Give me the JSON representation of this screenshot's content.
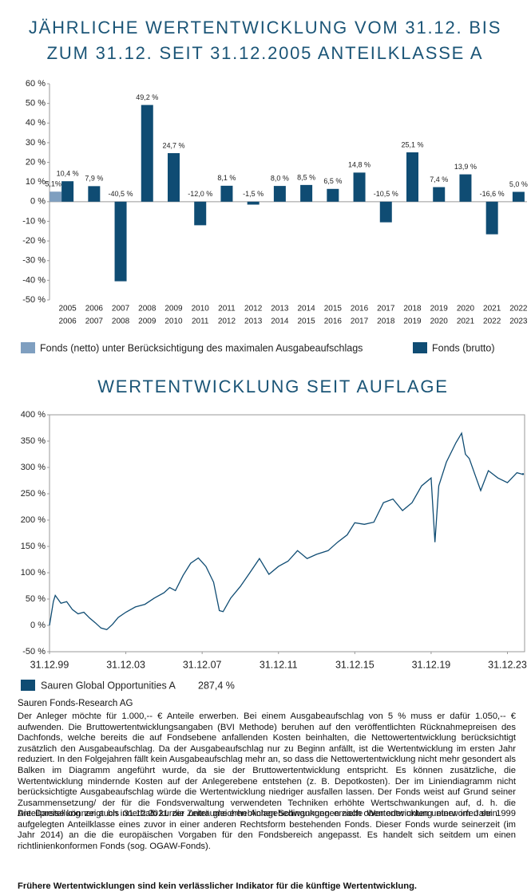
{
  "chart_data": [
    {
      "type": "bar",
      "title": [
        "JÄHRLICHE WERTENTWICKLUNG VOM 31.12. BIS",
        "ZUM 31.12. SEIT 31.12.2005 ANTEILKLASSE A"
      ],
      "categories": [
        [
          "2005",
          "2006"
        ],
        [
          "2006",
          "2007"
        ],
        [
          "2007",
          "2008"
        ],
        [
          "2008",
          "2009"
        ],
        [
          "2009",
          "2010"
        ],
        [
          "2010",
          "2011"
        ],
        [
          "2011",
          "2012"
        ],
        [
          "2012",
          "2013"
        ],
        [
          "2013",
          "2014"
        ],
        [
          "2014",
          "2015"
        ],
        [
          "2015",
          "2016"
        ],
        [
          "2016",
          "2017"
        ],
        [
          "2017",
          "2018"
        ],
        [
          "2018",
          "2019"
        ],
        [
          "2019",
          "2020"
        ],
        [
          "2020",
          "2021"
        ],
        [
          "2021",
          "2022"
        ],
        [
          "2022",
          "2023"
        ]
      ],
      "series": [
        {
          "name": "Fonds (netto) unter Berücksichtigung des maximalen Ausgabeaufschlags",
          "color": "#7f9fc0",
          "values": [
            5.1,
            null,
            null,
            null,
            null,
            null,
            null,
            null,
            null,
            null,
            null,
            null,
            null,
            null,
            null,
            null,
            null,
            null
          ],
          "value_labels": [
            "5,1%",
            null,
            null,
            null,
            null,
            null,
            null,
            null,
            null,
            null,
            null,
            null,
            null,
            null,
            null,
            null,
            null,
            null
          ]
        },
        {
          "name": "Fonds (brutto)",
          "color": "#0f4c73",
          "values": [
            10.4,
            7.9,
            -40.5,
            49.2,
            24.7,
            -12.0,
            8.1,
            -1.5,
            8.0,
            8.5,
            6.5,
            14.8,
            -10.5,
            25.1,
            7.4,
            13.9,
            -16.6,
            5.0
          ],
          "value_labels": [
            "10,4 %",
            "7,9 %",
            "-40,5 %",
            "49,2 %",
            "24,7 %",
            "-12,0 %",
            "8,1 %",
            "-1,5 %",
            "8,0 %",
            "8,5 %",
            "6,5 %",
            "14,8 %",
            "-10,5 %",
            "25,1 %",
            "7,4 %",
            "13,9 %",
            "-16,6 %",
            "5,0 %"
          ]
        }
      ],
      "ylim": [
        -50,
        60
      ],
      "yticks": [
        {
          "value": 60,
          "label": "60 %"
        },
        {
          "value": 50,
          "label": "50 %"
        },
        {
          "value": 40,
          "label": "40 %"
        },
        {
          "value": 30,
          "label": "30 %"
        },
        {
          "value": 20,
          "label": "20 %"
        },
        {
          "value": 10,
          "label": "10 %"
        },
        {
          "value": 0,
          "label": "0 %"
        },
        {
          "value": -10,
          "label": "-10 %"
        },
        {
          "value": -20,
          "label": "-20 %"
        },
        {
          "value": -30,
          "label": "-30 %"
        },
        {
          "value": -40,
          "label": "-40 %"
        },
        {
          "value": -50,
          "label": "-50 %"
        }
      ],
      "grid": false
    },
    {
      "type": "line",
      "title": "WERTENTWICKLUNG SEIT AUFLAGE",
      "series": [
        {
          "name": "Sauren Global Opportunities A",
          "color": "#0f4c73",
          "end_value": {
            "value": 287.4,
            "label": "287,4 %"
          },
          "x": [
            2000.0,
            2000.2,
            2000.3,
            2000.6,
            2000.9,
            2001.2,
            2001.5,
            2001.8,
            2002.1,
            2002.4,
            2002.7,
            2003.0,
            2003.3,
            2003.6,
            2004.0,
            2004.5,
            2005.0,
            2005.5,
            2006.0,
            2006.3,
            2006.6,
            2007.0,
            2007.4,
            2007.8,
            2008.2,
            2008.6,
            2008.9,
            2009.1,
            2009.5,
            2010.0,
            2010.5,
            2011.0,
            2011.5,
            2012.0,
            2012.5,
            2013.0,
            2013.5,
            2014.0,
            2014.6,
            2015.1,
            2015.6,
            2016.0,
            2016.5,
            2017.0,
            2017.5,
            2018.0,
            2018.5,
            2019.0,
            2019.5,
            2020.0,
            2020.2,
            2020.4,
            2020.8,
            2021.3,
            2021.6,
            2021.8,
            2022.0,
            2022.3,
            2022.6,
            2023.0,
            2023.5,
            2024.0,
            2024.5,
            2024.8
          ],
          "values": [
            0,
            45,
            57,
            42,
            45,
            30,
            22,
            25,
            14,
            5,
            -5,
            -8,
            2,
            15,
            25,
            35,
            40,
            52,
            62,
            72,
            66,
            95,
            118,
            128,
            112,
            82,
            28,
            26,
            52,
            74,
            100,
            127,
            97,
            112,
            122,
            142,
            127,
            135,
            142,
            158,
            172,
            195,
            192,
            196,
            233,
            240,
            218,
            233,
            265,
            280,
            158,
            265,
            310,
            347,
            365,
            325,
            317,
            286,
            256,
            294,
            280,
            271,
            290,
            287
          ]
        }
      ],
      "xlim": [
        2000,
        2024.9
      ],
      "xticks": [
        {
          "value": 2000,
          "label": "31.12.99"
        },
        {
          "value": 2004,
          "label": "31.12.03"
        },
        {
          "value": 2008,
          "label": "31.12.07"
        },
        {
          "value": 2012,
          "label": "31.12.11"
        },
        {
          "value": 2016,
          "label": "31.12.15"
        },
        {
          "value": 2020,
          "label": "31.12.19"
        },
        {
          "value": 2024,
          "label": "31.12.23"
        }
      ],
      "ylim": [
        -50,
        400
      ],
      "yticks": [
        {
          "value": 400,
          "label": "400 %"
        },
        {
          "value": 350,
          "label": "350 %"
        },
        {
          "value": 300,
          "label": "300 %"
        },
        {
          "value": 250,
          "label": "250 %"
        },
        {
          "value": 200,
          "label": "200 %"
        },
        {
          "value": 150,
          "label": "150 %"
        },
        {
          "value": 100,
          "label": "100 %"
        },
        {
          "value": 50,
          "label": "50 %"
        },
        {
          "value": 0,
          "label": "0 %"
        },
        {
          "value": -50,
          "label": "-50 %"
        }
      ],
      "grid": false
    }
  ],
  "document": {
    "source": "Sauren Fonds-Research AG",
    "paragraphs": [
      "Der Anleger möchte für 1.000,-- € Anteile erwerben. Bei einem Ausgabeaufschlag von 5 % muss er dafür 1.050,-- € aufwenden. Die Bruttowertentwicklungsangaben (BVI Methode) beruhen auf den veröffentlichten Rücknahmepreisen des Dachfonds, welche bereits die auf Fondsebene anfallenden Kosten beinhalten, die Nettowertentwicklung berücksichtigt zusätzlich den Ausgabeaufschlag. Da der Ausgabeaufschlag nur zu Beginn anfällt, ist die Wertentwicklung im ersten Jahr reduziert. In den Folgejahren fällt kein Ausgabeaufschlag mehr an, so dass die Nettowertentwicklung nicht mehr gesondert als Balken im Diagramm angeführt wurde, da sie der Bruttowertentwicklung entspricht. Es können zusätzliche, die Wertentwicklung mindernde Kosten auf der Anlegerebene entstehen (z. B. Depotkosten). Der im Liniendiagramm nicht berücksichtigte Ausgabeaufschlag würde die Wertentwicklung niedriger ausfallen lassen. Der Fonds weist auf Grund seiner Zusammensetzung/ der für die Fondsverwaltung verwendeten Techniken erhöhte Wertschwankungen auf, d. h. die Anteilpreise können auch innerhalb kurzer Zeiträume erheblichen Schwankungen nach oben oder unten unterworfen sein.",
      "Die Darstellung zeigt bis 31.12.2021 die unter gleichen Anlagebedingungen erzielte Wertentwicklung einer im Jahr 1999 aufgelegten Anteilklasse eines zuvor in einer anderen Rechtsform bestehenden Fonds. Dieser Fonds wurde seinerzeit (im Jahr 2014) an die die europäischen Vorgaben für den Fondsbereich angepasst. Es handelt sich seitdem um einen richtlinienkonformen Fonds (sog. OGAW-Fonds)."
    ],
    "disclaimer": "Frühere Wertentwicklungen sind kein verlässlicher Indikator für die künftige Wertentwicklung."
  }
}
